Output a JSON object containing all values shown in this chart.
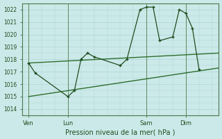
{
  "xlabel": "Pression niveau de la mer( hPa )",
  "bg_color": "#cce9e9",
  "grid_color": "#b0d8d8",
  "line_color": "#1e4d1e",
  "trend_color": "#2d6e2d",
  "ylim": [
    1013.5,
    1022.5
  ],
  "yticks": [
    1014,
    1015,
    1016,
    1017,
    1018,
    1019,
    1020,
    1021,
    1022
  ],
  "xtick_labels": [
    "Ven",
    "Lun",
    "Sam",
    "Dim"
  ],
  "xtick_positions": [
    0,
    24,
    72,
    96
  ],
  "xlim": [
    -4,
    116
  ],
  "vline_positions": [
    0,
    24,
    72,
    96
  ],
  "main_x": [
    0,
    4,
    24,
    28,
    32,
    36,
    40,
    56,
    60,
    68,
    72,
    76,
    80,
    88,
    92,
    96,
    100,
    104
  ],
  "main_y": [
    1017.7,
    1016.9,
    1015.0,
    1015.5,
    1018.0,
    1018.5,
    1018.2,
    1017.5,
    1018.0,
    1022.0,
    1022.2,
    1022.2,
    1019.5,
    1019.8,
    1022.0,
    1021.7,
    1020.5,
    1017.2
  ],
  "trend1_x": [
    0,
    116
  ],
  "trend1_y": [
    1017.7,
    1018.5
  ],
  "trend2_x": [
    0,
    116
  ],
  "trend2_y": [
    1015.0,
    1017.3
  ]
}
